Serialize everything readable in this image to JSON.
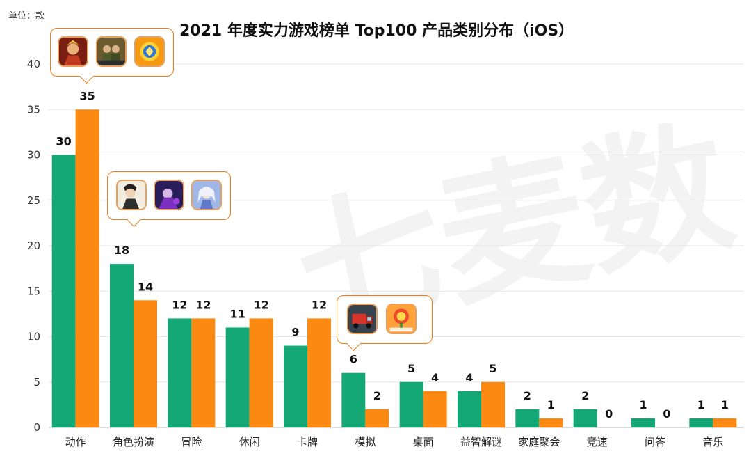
{
  "unit_label": "单位：款",
  "title": "2021 年度实力游戏榜单 Top100 产品类别分布（iOS）",
  "watermark": "七麦数",
  "colors": {
    "series1": "#13a876",
    "series2": "#fc8a12",
    "grid": "#e6e6e6",
    "axis": "#333333",
    "callout": "#f07b17"
  },
  "callouts": [
    {
      "category": "动作",
      "icons": [
        "game-icon-hero-warrior",
        "game-icon-soldier-squad",
        "game-icon-dream-gold"
      ]
    },
    {
      "category": "角色扮演",
      "icons": [
        "game-icon-swordsman",
        "game-icon-dark-mage-3d",
        "game-icon-silver-hair-heroine"
      ]
    },
    {
      "category": "模拟",
      "icons": [
        "game-icon-truck",
        "game-icon-flower-mascot"
      ]
    }
  ],
  "chart_data": {
    "type": "bar",
    "title": "2021 年度实力游戏榜单 Top100 产品类别分布（iOS）",
    "ylabel": "单位：款",
    "xlabel": "",
    "ylim": [
      0,
      40
    ],
    "yticks": [
      0,
      5,
      10,
      15,
      20,
      25,
      30,
      35,
      40
    ],
    "grid": true,
    "categories": [
      "动作",
      "角色扮演",
      "冒险",
      "休闲",
      "卡牌",
      "模拟",
      "桌面",
      "益智解谜",
      "家庭聚会",
      "竞速",
      "问答",
      "音乐"
    ],
    "series": [
      {
        "name": "series-1",
        "values": [
          30,
          18,
          12,
          11,
          9,
          6,
          5,
          4,
          2,
          2,
          1,
          1
        ]
      },
      {
        "name": "series-2",
        "values": [
          35,
          14,
          12,
          12,
          12,
          2,
          4,
          5,
          1,
          0,
          0,
          1
        ]
      }
    ]
  }
}
